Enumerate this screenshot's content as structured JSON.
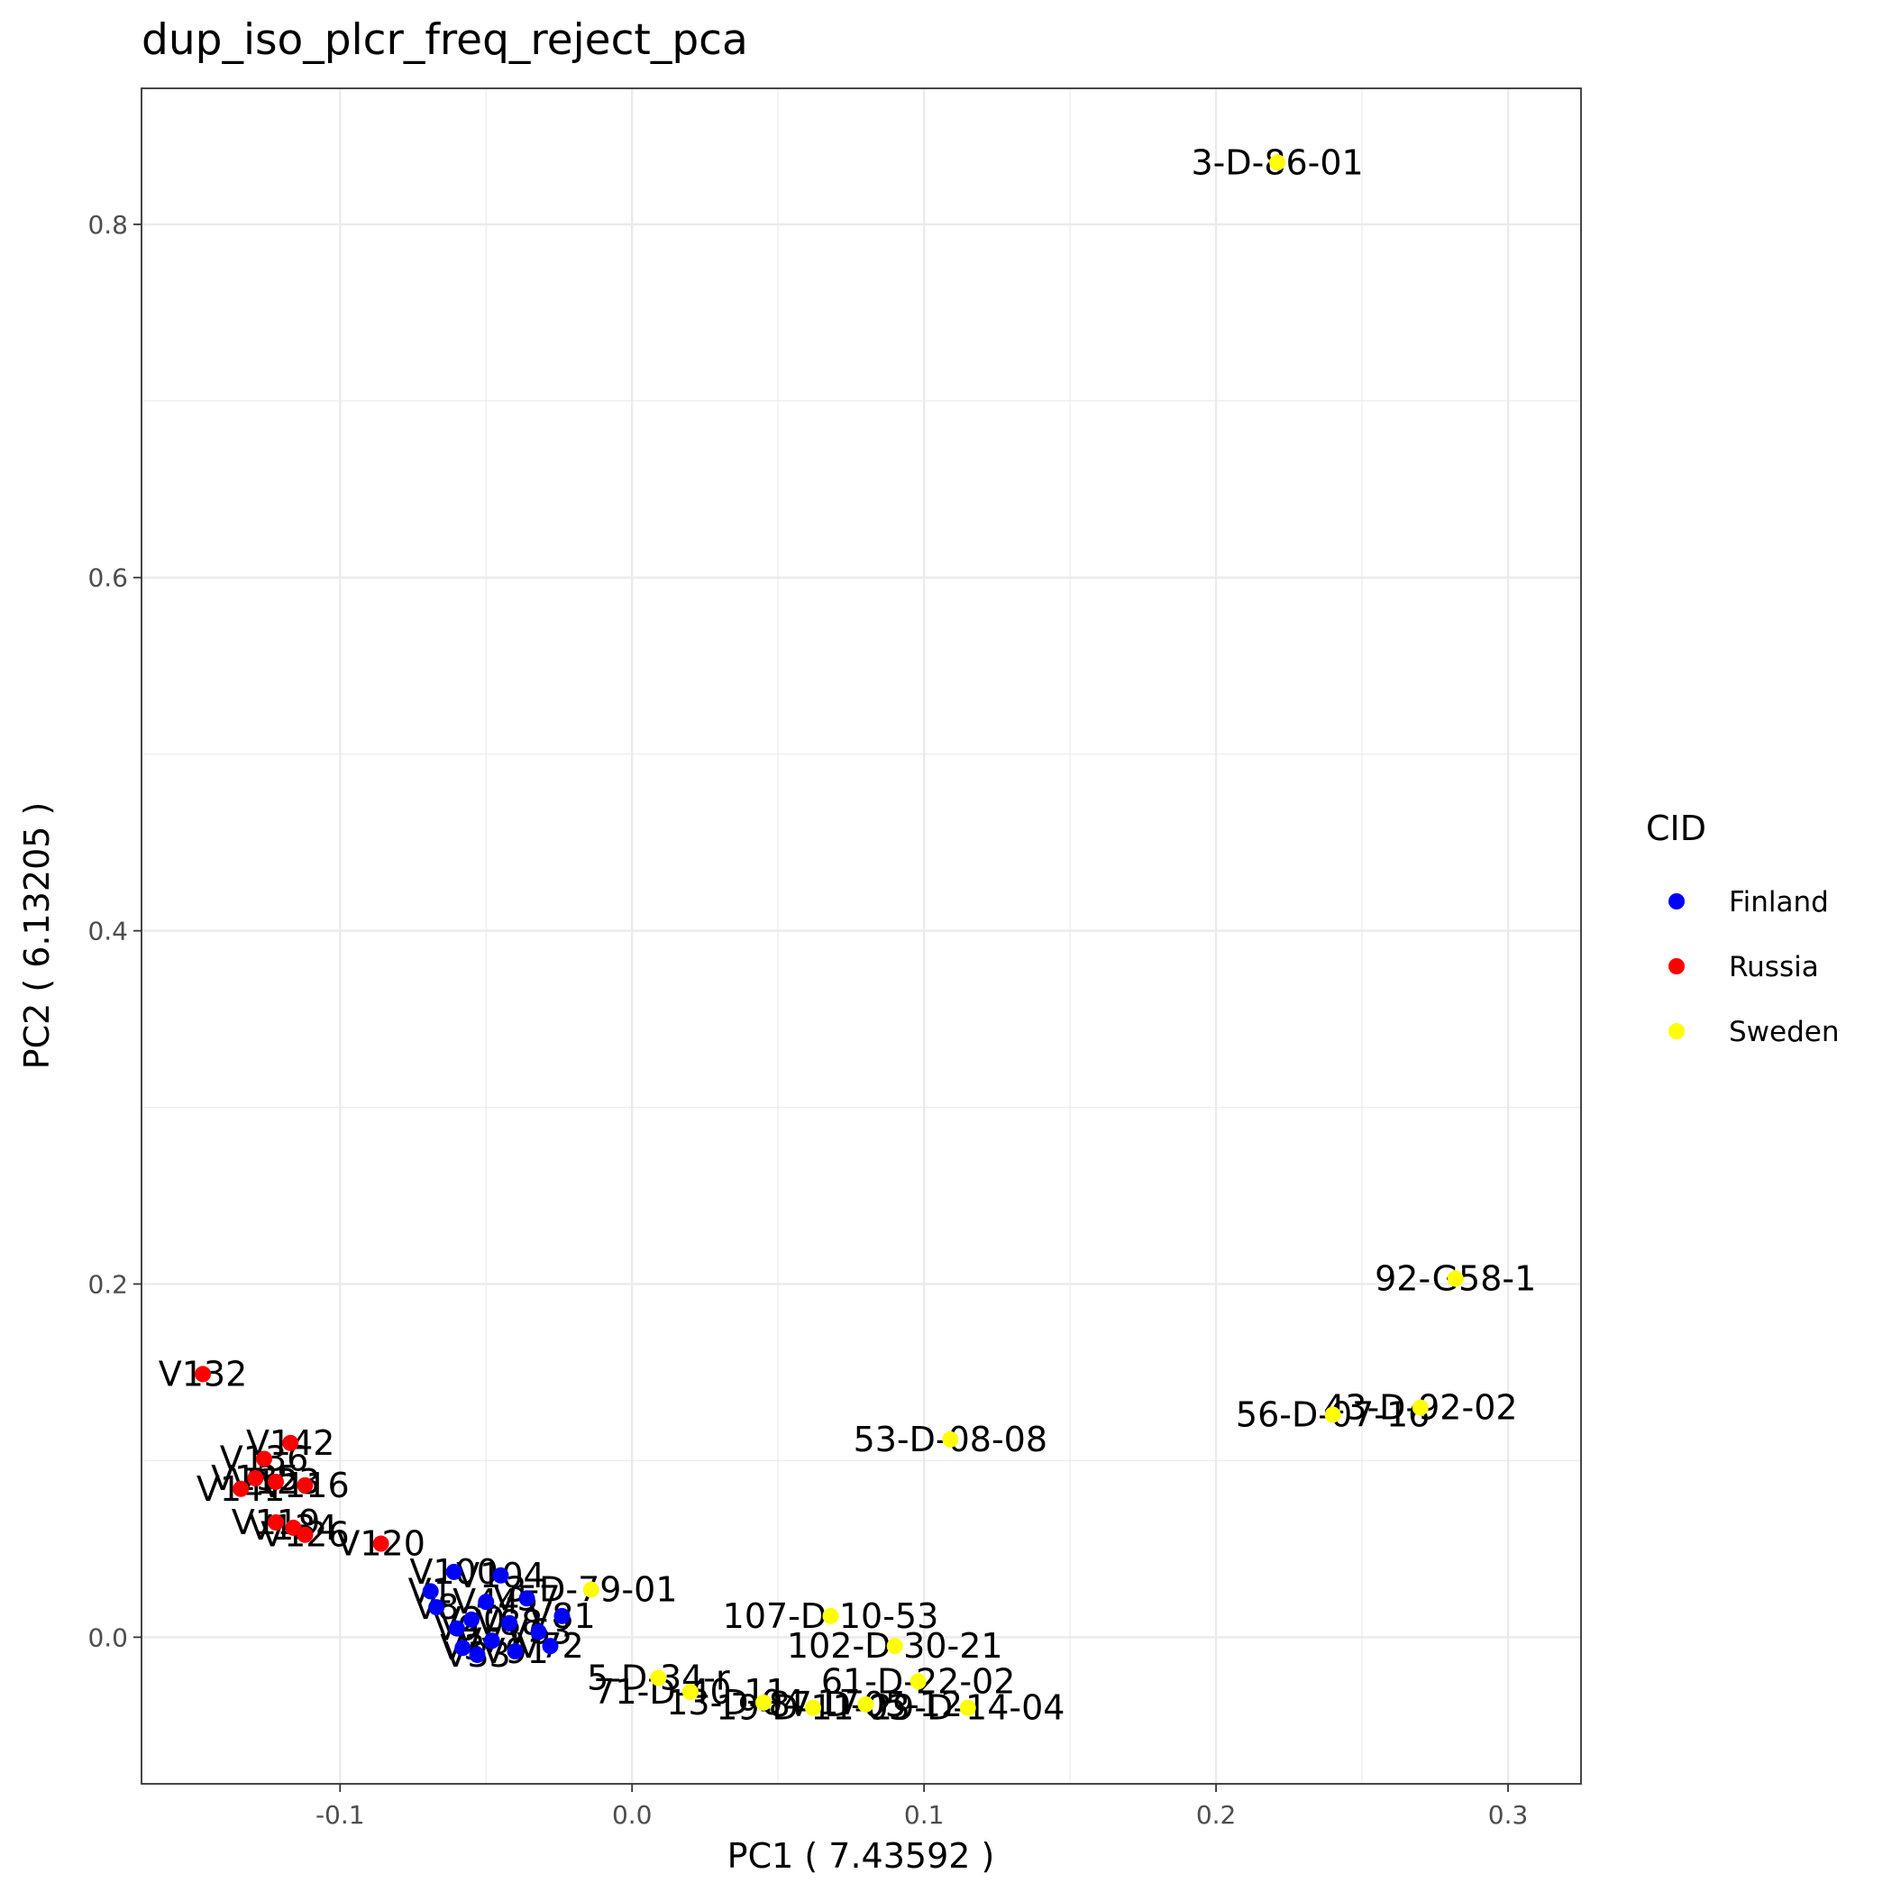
{
  "chart_data": {
    "type": "scatter",
    "title": "dup_iso_plcr_freq_reject_pca",
    "xlabel": "PC1 ( 7.43592 )",
    "ylabel": "PC2 ( 6.13205 )",
    "xlim": [
      -0.168,
      0.325
    ],
    "ylim": [
      -0.083,
      0.877
    ],
    "x_ticks": [
      -0.1,
      0.0,
      0.1,
      0.2,
      0.3
    ],
    "x_tick_labels": [
      "-0.1",
      "0.0",
      "0.1",
      "0.2",
      "0.3"
    ],
    "y_ticks": [
      0.0,
      0.2,
      0.4,
      0.6,
      0.8
    ],
    "y_tick_labels": [
      "0.0",
      "0.2",
      "0.4",
      "0.6",
      "0.8"
    ],
    "grid": true,
    "legend": {
      "title": "CID",
      "position": "right",
      "entries": [
        {
          "name": "Finland",
          "color": "#0000ff"
        },
        {
          "name": "Russia",
          "color": "#ff0000"
        },
        {
          "name": "Sweden",
          "color": "#ffff00"
        }
      ]
    },
    "series": [
      {
        "name": "Finland",
        "color": "#0000ff",
        "points": [
          {
            "x": -0.069,
            "y": 0.026,
            "label": "V1"
          },
          {
            "x": -0.067,
            "y": 0.017,
            "label": "V8"
          },
          {
            "x": -0.061,
            "y": 0.037,
            "label": "V100"
          },
          {
            "x": -0.06,
            "y": 0.005,
            "label": "V9"
          },
          {
            "x": -0.058,
            "y": -0.006,
            "label": "V3"
          },
          {
            "x": -0.055,
            "y": 0.01,
            "label": "V20"
          },
          {
            "x": -0.053,
            "y": -0.01,
            "label": "V33"
          },
          {
            "x": -0.05,
            "y": 0.02,
            "label": "V44"
          },
          {
            "x": -0.048,
            "y": -0.002,
            "label": "V71"
          },
          {
            "x": -0.045,
            "y": 0.035,
            "label": "V104"
          },
          {
            "x": -0.042,
            "y": 0.008,
            "label": "V88"
          },
          {
            "x": -0.04,
            "y": -0.008,
            "label": "V91"
          },
          {
            "x": -0.036,
            "y": 0.022,
            "label": "V57"
          },
          {
            "x": -0.032,
            "y": 0.003,
            "label": "V63"
          },
          {
            "x": -0.028,
            "y": -0.005,
            "label": "V72"
          },
          {
            "x": -0.024,
            "y": 0.012,
            "label": "V81"
          }
        ]
      },
      {
        "name": "Russia",
        "color": "#ff0000",
        "points": [
          {
            "x": -0.147,
            "y": 0.149,
            "label": "V132"
          },
          {
            "x": -0.117,
            "y": 0.11,
            "label": "V142"
          },
          {
            "x": -0.126,
            "y": 0.101,
            "label": "V136"
          },
          {
            "x": -0.129,
            "y": 0.09,
            "label": "V135"
          },
          {
            "x": -0.122,
            "y": 0.088,
            "label": "V123"
          },
          {
            "x": -0.134,
            "y": 0.084,
            "label": "V141"
          },
          {
            "x": -0.112,
            "y": 0.086,
            "label": "V116"
          },
          {
            "x": -0.122,
            "y": 0.065,
            "label": "V119"
          },
          {
            "x": -0.116,
            "y": 0.062,
            "label": "V134"
          },
          {
            "x": -0.112,
            "y": 0.058,
            "label": "V126"
          },
          {
            "x": -0.086,
            "y": 0.053,
            "label": "V120"
          }
        ]
      },
      {
        "name": "Sweden",
        "color": "#ffff00",
        "points": [
          {
            "x": 0.221,
            "y": 0.835,
            "label": "3-D-86-01"
          },
          {
            "x": 0.282,
            "y": 0.203,
            "label": "92-G58-1"
          },
          {
            "x": 0.24,
            "y": 0.126,
            "label": "56-D-07-16"
          },
          {
            "x": 0.27,
            "y": 0.13,
            "label": "43-D-92-02"
          },
          {
            "x": 0.109,
            "y": 0.112,
            "label": "53-D-08-08"
          },
          {
            "x": 0.068,
            "y": 0.012,
            "label": "107-D-10-53"
          },
          {
            "x": 0.09,
            "y": -0.005,
            "label": "102-D-30-21"
          },
          {
            "x": -0.014,
            "y": 0.027,
            "label": "3-D-79-01"
          },
          {
            "x": 0.009,
            "y": -0.023,
            "label": "5-D-34-r"
          },
          {
            "x": 0.02,
            "y": -0.031,
            "label": "71-D-40-11"
          },
          {
            "x": 0.045,
            "y": -0.037,
            "label": "13-D-04-17"
          },
          {
            "x": 0.062,
            "y": -0.04,
            "label": "19-D-11-03"
          },
          {
            "x": 0.08,
            "y": -0.038,
            "label": "87-D-05-12"
          },
          {
            "x": 0.098,
            "y": -0.025,
            "label": "61-D-22-02"
          },
          {
            "x": 0.115,
            "y": -0.04,
            "label": "29-D-14-04"
          }
        ]
      }
    ]
  }
}
